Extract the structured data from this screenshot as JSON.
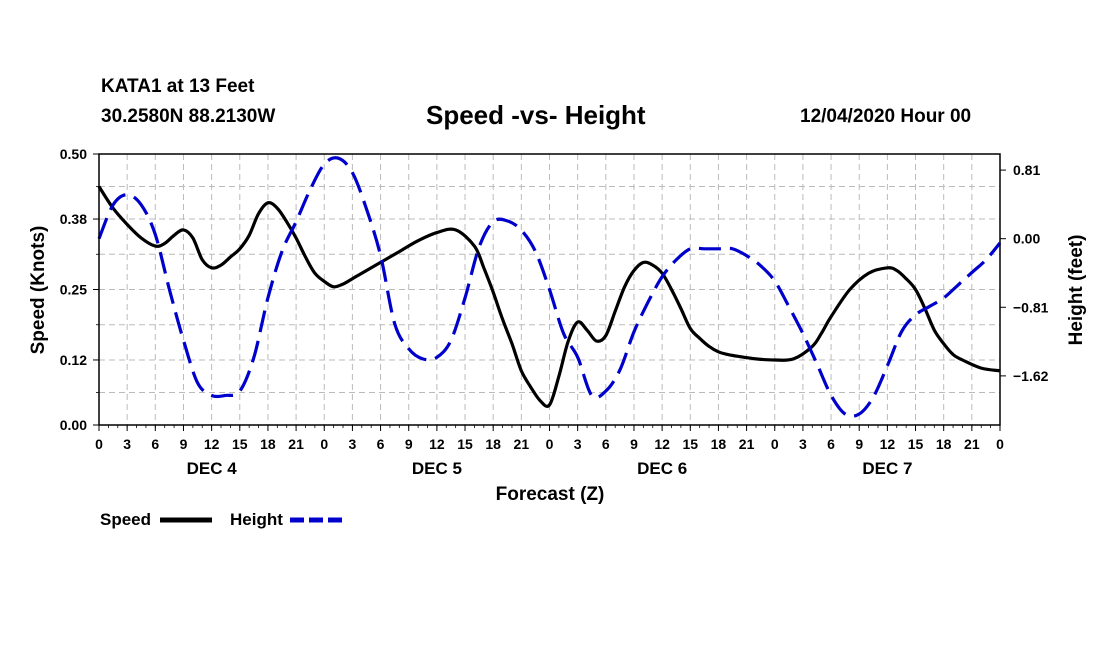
{
  "header": {
    "station": "KATA1 at 13 Feet",
    "coords": "30.2580N 88.2130W",
    "title": "Speed -vs- Height",
    "datetime": "12/04/2020 Hour 00"
  },
  "colors": {
    "speed": "#000000",
    "height": "#0000cc",
    "grid": "#bbbbbb"
  },
  "chart_data": {
    "type": "line",
    "title": "Speed -vs- Height",
    "xlabel": "Forecast (Z)",
    "ylabel": "Speed (Knots)",
    "y2label": "Height (feet)",
    "xlim": [
      0,
      96
    ],
    "ylim": [
      0,
      0.5
    ],
    "y2lim": [
      -2.2,
      1.0
    ],
    "x_tick_labels": [
      "0",
      "3",
      "6",
      "9",
      "12",
      "15",
      "18",
      "21",
      "0",
      "3",
      "6",
      "9",
      "12",
      "15",
      "18",
      "21",
      "0",
      "3",
      "6",
      "9",
      "12",
      "15",
      "18",
      "21",
      "0",
      "3",
      "6",
      "9",
      "12",
      "15",
      "18",
      "21",
      "0"
    ],
    "day_labels": [
      {
        "label": "DEC 4",
        "x": 12
      },
      {
        "label": "DEC 5",
        "x": 36
      },
      {
        "label": "DEC 6",
        "x": 60
      },
      {
        "label": "DEC 7",
        "x": 84
      }
    ],
    "y_ticks": [
      0.0,
      0.12,
      0.25,
      0.38,
      0.5
    ],
    "y_tick_labels": [
      "0.00",
      "0.12",
      "0.25",
      "0.38",
      "0.50"
    ],
    "y2_ticks": [
      0.81,
      0.0,
      -0.81,
      -1.62
    ],
    "y2_tick_labels": [
      "0.81",
      "0.00",
      "−0.81",
      "−1.62"
    ],
    "grid": true,
    "legend_position": "bottom-left",
    "series": [
      {
        "name": "Speed",
        "axis": "left",
        "style": "solid",
        "x": [
          0,
          1.5,
          3,
          4.5,
          6,
          7,
          8,
          9,
          10,
          11,
          12,
          13,
          14,
          15,
          16,
          17,
          18,
          19,
          20,
          21,
          22,
          23,
          24,
          25,
          26,
          27,
          28,
          30,
          32,
          34,
          36,
          38,
          40,
          41,
          42,
          43,
          44,
          45,
          46,
          47,
          48,
          49,
          50,
          51,
          52,
          53,
          54,
          55,
          56,
          57,
          58,
          59,
          60,
          61,
          62,
          63,
          64,
          65,
          66,
          67,
          68,
          70,
          72,
          74,
          76,
          77,
          78,
          80,
          82,
          84,
          85,
          86,
          87,
          88,
          89,
          90,
          91,
          92,
          94,
          96
        ],
        "values": [
          0.44,
          0.4,
          0.37,
          0.345,
          0.33,
          0.335,
          0.35,
          0.36,
          0.345,
          0.305,
          0.29,
          0.295,
          0.31,
          0.325,
          0.35,
          0.39,
          0.41,
          0.4,
          0.375,
          0.345,
          0.31,
          0.28,
          0.265,
          0.255,
          0.26,
          0.27,
          0.28,
          0.3,
          0.32,
          0.34,
          0.355,
          0.36,
          0.33,
          0.29,
          0.245,
          0.195,
          0.15,
          0.1,
          0.07,
          0.045,
          0.037,
          0.09,
          0.155,
          0.19,
          0.175,
          0.155,
          0.165,
          0.21,
          0.255,
          0.285,
          0.3,
          0.295,
          0.28,
          0.25,
          0.215,
          0.178,
          0.16,
          0.145,
          0.135,
          0.13,
          0.127,
          0.122,
          0.12,
          0.122,
          0.145,
          0.17,
          0.2,
          0.25,
          0.28,
          0.29,
          0.285,
          0.27,
          0.25,
          0.215,
          0.175,
          0.15,
          0.13,
          0.12,
          0.105,
          0.1
        ]
      },
      {
        "name": "Height",
        "axis": "right",
        "style": "dashed",
        "x": [
          0,
          1.5,
          3,
          4.5,
          6,
          7.5,
          9,
          10.5,
          12,
          13.5,
          15,
          16.5,
          18,
          19.5,
          21,
          22.5,
          24,
          25.5,
          27,
          28.5,
          30,
          31.5,
          33,
          34.5,
          36,
          37.5,
          39,
          40.5,
          42,
          43.5,
          45,
          46.5,
          48,
          49.5,
          51,
          52.5,
          54,
          55.5,
          57,
          58.5,
          60,
          61.5,
          63,
          64.5,
          66,
          67.5,
          69,
          70.5,
          72,
          73.5,
          75,
          76.5,
          78,
          79.5,
          81,
          82.5,
          84,
          85.5,
          87,
          88.5,
          90,
          91.5,
          93,
          94.5,
          96
        ],
        "values": [
          0.0,
          0.4,
          0.52,
          0.4,
          0.05,
          -0.6,
          -1.2,
          -1.7,
          -1.85,
          -1.85,
          -1.8,
          -1.4,
          -0.7,
          -0.15,
          0.2,
          0.58,
          0.88,
          0.95,
          0.78,
          0.35,
          -0.2,
          -1.0,
          -1.3,
          -1.42,
          -1.4,
          -1.2,
          -0.7,
          -0.1,
          0.2,
          0.21,
          0.1,
          -0.15,
          -0.6,
          -1.12,
          -1.4,
          -1.85,
          -1.8,
          -1.55,
          -1.1,
          -0.75,
          -0.45,
          -0.25,
          -0.12,
          -0.12,
          -0.12,
          -0.12,
          -0.2,
          -0.32,
          -0.5,
          -0.8,
          -1.12,
          -1.48,
          -1.85,
          -2.07,
          -2.07,
          -1.87,
          -1.5,
          -1.1,
          -0.9,
          -0.8,
          -0.7,
          -0.55,
          -0.4,
          -0.25,
          -0.05
        ]
      }
    ],
    "legend": [
      {
        "label": "Speed",
        "style": "solid"
      },
      {
        "label": "Height",
        "style": "dashed"
      }
    ]
  }
}
